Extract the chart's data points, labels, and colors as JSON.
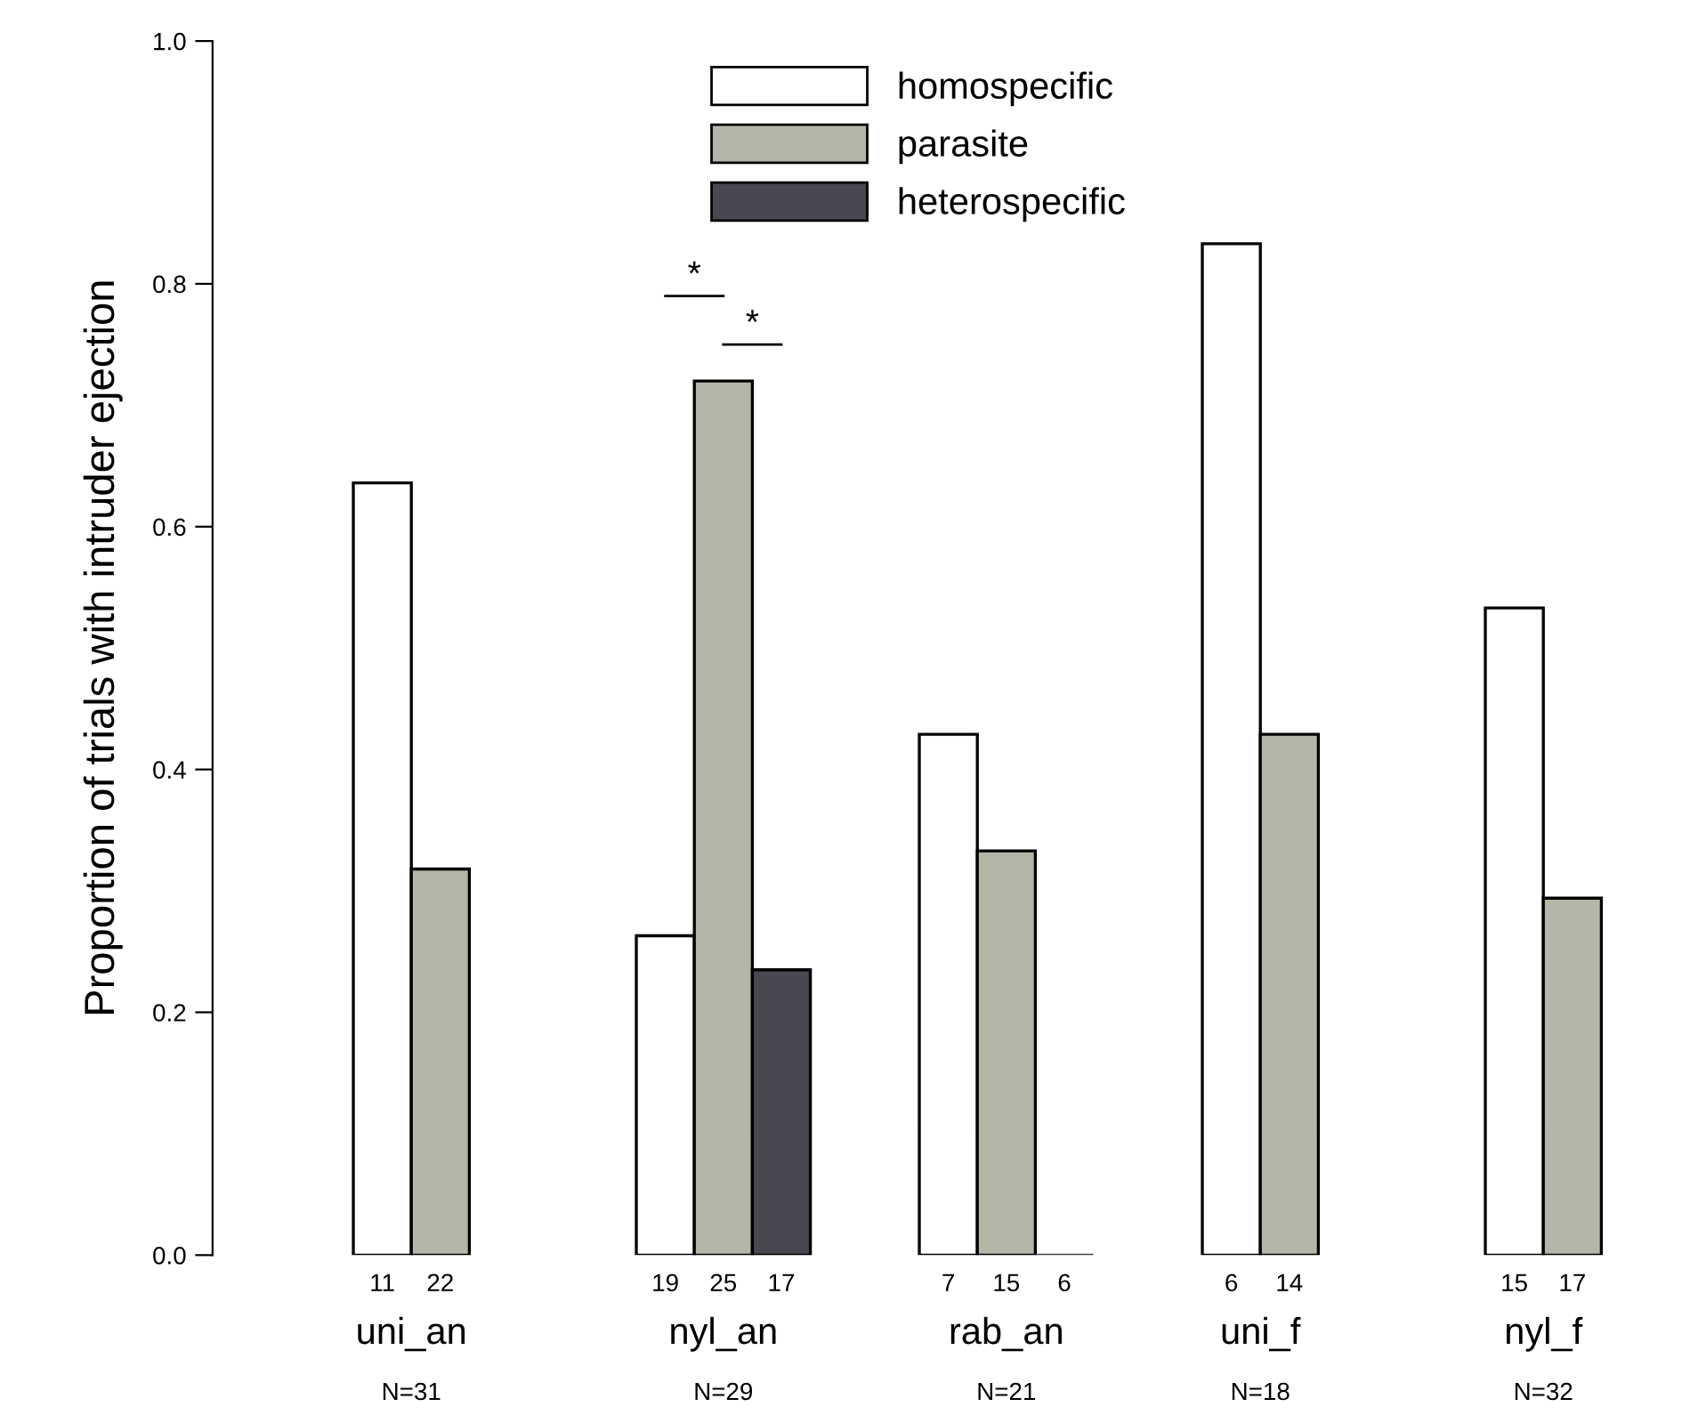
{
  "chart_data": {
    "type": "bar",
    "ylabel": "Proportion of trials with intruder ejection",
    "categories": [
      "uni_an",
      "nyl_an",
      "rab_an",
      "uni_f",
      "nyl_f"
    ],
    "series": [
      {
        "name": "homospecific",
        "color": "#ffffff",
        "values": [
          0.636,
          0.263,
          0.429,
          0.833,
          0.533
        ]
      },
      {
        "name": "parasite",
        "color": "#b5b5a8",
        "values": [
          0.318,
          0.72,
          0.333,
          0.429,
          0.294
        ]
      },
      {
        "name": "heterospecific",
        "color": "#474850",
        "values": [
          null,
          0.235,
          0,
          null,
          null
        ]
      }
    ],
    "ylim": [
      0,
      1.0
    ],
    "yticks": [
      {
        "value": 0,
        "label": "0.0"
      },
      0.2,
      0.4,
      0.6,
      0.8,
      {
        "value": 1,
        "label": "1.0"
      }
    ],
    "legend": "top",
    "grid": false,
    "annotations": [
      "11",
      "22",
      "19",
      "25",
      "17",
      "7",
      "15",
      "6",
      "6",
      "14",
      "15",
      "17",
      "N=31",
      "N=29",
      "N=21",
      "N=18",
      "N=32",
      "*",
      "*"
    ]
  }
}
